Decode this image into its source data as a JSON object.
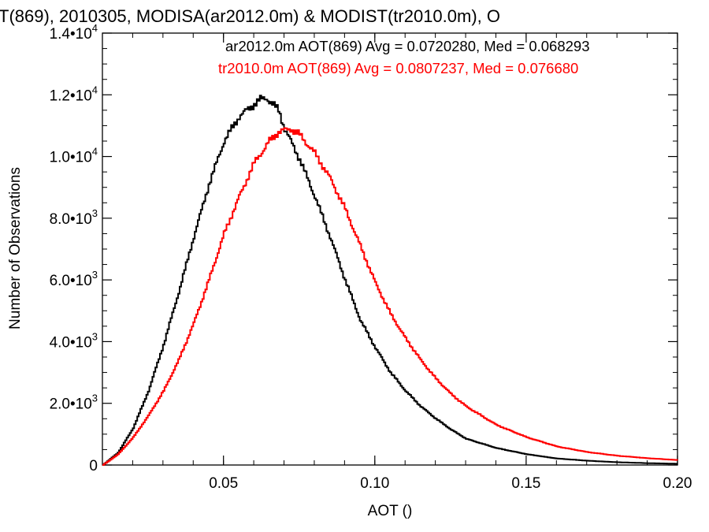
{
  "chart_data": {
    "type": "line",
    "title": "T(869), 2010305, MODISA(ar2012.0m) & MODIST(tr2010.0m), O",
    "xlabel": "AOT ()",
    "ylabel": "Number of Observations",
    "xlim": [
      0.01,
      0.2
    ],
    "ylim": [
      0,
      14000
    ],
    "x_ticks": [
      {
        "value": 0.05,
        "label": "0.05"
      },
      {
        "value": 0.1,
        "label": "0.10"
      },
      {
        "value": 0.15,
        "label": "0.15"
      },
      {
        "value": 0.2,
        "label": "0.20"
      }
    ],
    "y_ticks": [
      {
        "value": 0,
        "mantissa": "0",
        "exponent": ""
      },
      {
        "value": 2000,
        "mantissa": "2.0",
        "exponent": "3"
      },
      {
        "value": 4000,
        "mantissa": "4.0",
        "exponent": "3"
      },
      {
        "value": 6000,
        "mantissa": "6.0",
        "exponent": "3"
      },
      {
        "value": 8000,
        "mantissa": "8.0",
        "exponent": "3"
      },
      {
        "value": 10000,
        "mantissa": "1.0",
        "exponent": "4"
      },
      {
        "value": 12000,
        "mantissa": "1.2",
        "exponent": "4"
      },
      {
        "value": 14000,
        "mantissa": "1.4",
        "exponent": "4"
      }
    ],
    "series": [
      {
        "color": "#000000",
        "annotation": "ar2012.0m AOT(869) Avg = 0.0720280, Med = 0.068293",
        "x": [
          0.01,
          0.015,
          0.02,
          0.025,
          0.03,
          0.035,
          0.04,
          0.045,
          0.05,
          0.055,
          0.06,
          0.062,
          0.064,
          0.066,
          0.068,
          0.07,
          0.075,
          0.08,
          0.085,
          0.09,
          0.095,
          0.1,
          0.105,
          0.11,
          0.115,
          0.12,
          0.125,
          0.13,
          0.14,
          0.15,
          0.16,
          0.17,
          0.18,
          0.19,
          0.2
        ],
        "y": [
          0,
          400,
          1200,
          2400,
          3900,
          5600,
          7400,
          9100,
          10500,
          11300,
          11700,
          11850,
          11900,
          11700,
          11500,
          10900,
          9900,
          8700,
          7400,
          6000,
          4700,
          3800,
          3000,
          2400,
          1900,
          1500,
          1150,
          850,
          550,
          350,
          210,
          140,
          90,
          60,
          40
        ]
      },
      {
        "color": "#ff0000",
        "annotation": "tr2010.0m AOT(869) Avg = 0.0807237, Med = 0.076680",
        "x": [
          0.01,
          0.015,
          0.02,
          0.025,
          0.03,
          0.035,
          0.04,
          0.045,
          0.05,
          0.055,
          0.06,
          0.065,
          0.068,
          0.07,
          0.072,
          0.075,
          0.08,
          0.085,
          0.09,
          0.095,
          0.1,
          0.105,
          0.11,
          0.115,
          0.12,
          0.125,
          0.13,
          0.14,
          0.15,
          0.16,
          0.17,
          0.18,
          0.19,
          0.2
        ],
        "y": [
          0,
          350,
          900,
          1600,
          2400,
          3400,
          4600,
          6000,
          7500,
          8700,
          9800,
          10500,
          10800,
          10850,
          10900,
          10700,
          10100,
          9300,
          8300,
          7100,
          5900,
          4900,
          4100,
          3400,
          2800,
          2300,
          1900,
          1300,
          900,
          600,
          420,
          300,
          220,
          160
        ]
      }
    ]
  }
}
